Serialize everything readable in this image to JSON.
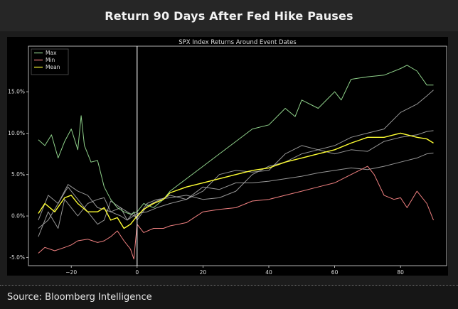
{
  "header": {
    "title": "Return 90 Days After Fed Hike Pauses"
  },
  "footer": {
    "source": "Source: Bloomberg Intelligence"
  },
  "colors": {
    "max": "#8fd18a",
    "min": "#f08080",
    "mean": "#ffff33",
    "other": "#b0b0b0",
    "vline": "#ffffff"
  },
  "chart_data": {
    "type": "line",
    "title": "SPX Index Returns Around Event Dates",
    "xlabel": "",
    "ylabel": "",
    "xlim": [
      -33,
      94
    ],
    "ylim": [
      -6,
      20.5
    ],
    "x_ticks": [
      -20,
      0,
      20,
      40,
      60,
      80
    ],
    "y_ticks": [
      -5,
      0,
      5,
      10,
      15
    ],
    "x_tick_labels": [
      "−20",
      "0",
      "20",
      "40",
      "60",
      "80"
    ],
    "y_tick_labels": [
      "-5.0%",
      "0.0%",
      "5.0%",
      "10.0%",
      "15.0%"
    ],
    "event_line_x": 0,
    "legend_position": "top-left",
    "legend": [
      "Max",
      "Min",
      "Mean"
    ],
    "series": [
      {
        "name": "Max",
        "role": "max",
        "x": [
          -30,
          -28,
          -26,
          -24,
          -22,
          -20,
          -18,
          -17,
          -16,
          -14,
          -12,
          -10,
          -8,
          -6,
          -4,
          -2,
          0,
          2,
          5,
          8,
          10,
          15,
          20,
          25,
          30,
          35,
          40,
          45,
          48,
          50,
          55,
          60,
          62,
          65,
          70,
          75,
          80,
          82,
          85,
          88,
          90
        ],
        "y": [
          9.2,
          8.5,
          9.8,
          7.0,
          9.0,
          10.5,
          8.0,
          12.1,
          8.5,
          6.5,
          6.7,
          3.5,
          2.0,
          1.0,
          0.5,
          0.2,
          0.5,
          1.5,
          1.0,
          2.0,
          3.0,
          4.5,
          6.0,
          7.5,
          9.0,
          10.5,
          11.0,
          13.0,
          12.0,
          14.0,
          13.0,
          15.0,
          14.0,
          16.5,
          16.8,
          17.0,
          17.8,
          18.2,
          17.5,
          15.8,
          15.8
        ]
      },
      {
        "name": "Min",
        "role": "min",
        "x": [
          -30,
          -28,
          -25,
          -22,
          -20,
          -18,
          -15,
          -12,
          -10,
          -8,
          -6,
          -4,
          -2,
          -1,
          0,
          2,
          5,
          8,
          10,
          15,
          20,
          25,
          30,
          35,
          40,
          45,
          50,
          55,
          60,
          65,
          70,
          72,
          75,
          78,
          80,
          82,
          85,
          88,
          90
        ],
        "y": [
          -4.5,
          -3.8,
          -4.2,
          -3.8,
          -3.5,
          -3.0,
          -2.8,
          -3.2,
          -3.0,
          -2.5,
          -1.8,
          -3.0,
          -4.0,
          -5.2,
          -1.0,
          -2.0,
          -1.5,
          -1.5,
          -1.2,
          -0.8,
          0.5,
          0.8,
          1.0,
          1.8,
          2.0,
          2.5,
          3.0,
          3.5,
          4.0,
          5.0,
          6.0,
          5.0,
          2.5,
          2.0,
          2.2,
          1.0,
          3.0,
          1.5,
          -0.5
        ]
      },
      {
        "name": "Mean",
        "role": "mean",
        "x": [
          -30,
          -28,
          -25,
          -22,
          -20,
          -18,
          -15,
          -12,
          -10,
          -8,
          -6,
          -4,
          -2,
          0,
          2,
          5,
          8,
          10,
          15,
          20,
          25,
          30,
          35,
          40,
          45,
          50,
          55,
          60,
          65,
          70,
          75,
          80,
          82,
          85,
          88,
          90
        ],
        "y": [
          0.3,
          1.5,
          0.5,
          2.2,
          2.5,
          1.5,
          0.5,
          0.5,
          1.0,
          -0.5,
          -0.2,
          -1.5,
          -1.0,
          0.0,
          0.8,
          1.5,
          2.0,
          2.8,
          3.5,
          4.0,
          4.5,
          5.0,
          5.5,
          5.8,
          6.5,
          7.0,
          7.5,
          8.0,
          8.8,
          9.5,
          9.5,
          10.0,
          9.8,
          9.5,
          9.3,
          8.8
        ]
      },
      {
        "name": "",
        "role": "other",
        "x": [
          -30,
          -27,
          -24,
          -22,
          -20,
          -18,
          -15,
          -12,
          -10,
          -8,
          -5,
          -3,
          -1,
          0,
          3,
          6,
          10,
          15,
          20,
          25,
          30,
          35,
          40,
          45,
          50,
          55,
          60,
          65,
          70,
          75,
          80,
          85,
          88,
          90
        ],
        "y": [
          -2.5,
          0.5,
          -1.5,
          2.0,
          1.0,
          0.0,
          1.5,
          2.0,
          2.2,
          0.5,
          0.0,
          -0.5,
          0.5,
          -0.5,
          1.2,
          1.8,
          2.5,
          2.0,
          3.0,
          5.0,
          5.5,
          5.3,
          5.5,
          7.5,
          8.5,
          8.0,
          7.5,
          8.0,
          7.8,
          9.0,
          9.5,
          9.8,
          10.2,
          10.3
        ]
      },
      {
        "name": "",
        "role": "other",
        "x": [
          -30,
          -27,
          -24,
          -21,
          -18,
          -15,
          -12,
          -10,
          -8,
          -5,
          -3,
          0,
          3,
          6,
          10,
          15,
          20,
          25,
          30,
          35,
          40,
          45,
          50,
          55,
          60,
          65,
          70,
          75,
          80,
          85,
          88,
          90
        ],
        "y": [
          -1.5,
          -0.5,
          1.5,
          3.5,
          2.0,
          0.5,
          -1.0,
          -0.5,
          1.8,
          1.0,
          -0.5,
          0.3,
          0.5,
          1.0,
          1.5,
          2.0,
          3.5,
          3.2,
          4.0,
          4.0,
          4.2,
          4.5,
          4.8,
          5.2,
          5.5,
          5.8,
          5.6,
          6.0,
          6.5,
          7.0,
          7.5,
          7.6
        ]
      },
      {
        "name": "",
        "role": "other",
        "x": [
          -30,
          -27,
          -24,
          -21,
          -18,
          -15,
          -12,
          -10,
          -8,
          -5,
          -3,
          0,
          3,
          6,
          10,
          15,
          20,
          25,
          30,
          35,
          40,
          45,
          50,
          55,
          60,
          65,
          70,
          75,
          80,
          85,
          88,
          90
        ],
        "y": [
          -0.5,
          2.5,
          1.5,
          3.8,
          3.0,
          2.5,
          1.0,
          0.8,
          0.5,
          1.0,
          0.5,
          -0.2,
          1.5,
          2.0,
          2.2,
          2.5,
          2.0,
          2.2,
          3.0,
          5.0,
          6.0,
          6.5,
          7.5,
          8.0,
          8.5,
          9.5,
          10.0,
          10.5,
          12.5,
          13.5,
          14.5,
          15.2
        ]
      }
    ]
  }
}
